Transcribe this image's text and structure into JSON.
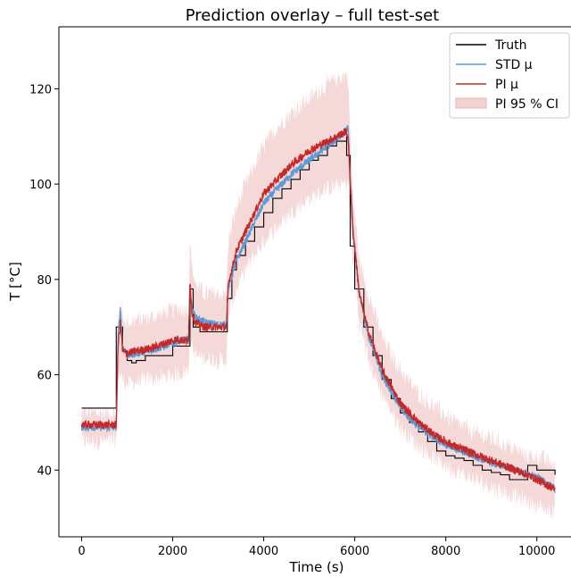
{
  "chart_data": {
    "type": "line",
    "title": "Prediction overlay – full test-set",
    "xlabel": "Time (s)",
    "ylabel": "T [°C]",
    "xlim": [
      -500,
      10750
    ],
    "ylim": [
      26,
      133
    ],
    "xticks": [
      0,
      2000,
      4000,
      6000,
      8000,
      10000
    ],
    "yticks": [
      40,
      60,
      80,
      100,
      120
    ],
    "grid": false,
    "legend_position": "top-right",
    "series": [
      {
        "name": "Truth",
        "kind": "step",
        "color": "#000000",
        "x": [
          0,
          760,
          760,
          900,
          1000,
          1100,
          1200,
          1400,
          1700,
          2000,
          2300,
          2380,
          2450,
          2600,
          2800,
          3000,
          3200,
          3200,
          3300,
          3400,
          3600,
          3800,
          4000,
          4200,
          4400,
          4600,
          4800,
          5000,
          5200,
          5400,
          5600,
          5820,
          5820,
          5900,
          6000,
          6200,
          6400,
          6600,
          6800,
          7000,
          7200,
          7400,
          7600,
          7800,
          8000,
          8200,
          8400,
          8600,
          8800,
          9000,
          9200,
          9400,
          9600,
          9800,
          10000,
          10200,
          10400
        ],
        "y": [
          53,
          53,
          70,
          65,
          63,
          62.5,
          63,
          64,
          64,
          66,
          66,
          78,
          70,
          69,
          69,
          69,
          69,
          76,
          82,
          85,
          88,
          91,
          94,
          97,
          99,
          101,
          103,
          105,
          106,
          108,
          109,
          110,
          106,
          87,
          78,
          70,
          64,
          59,
          55,
          52,
          50,
          48,
          46,
          44,
          43,
          42.5,
          42,
          41,
          40,
          39.5,
          39,
          38,
          38,
          41,
          40,
          40,
          39
        ]
      },
      {
        "name": "STD μ",
        "color": "#5b9bd5",
        "x": [
          0,
          760,
          800,
          850,
          900,
          1000,
          1200,
          1500,
          1800,
          2100,
          2350,
          2380,
          2420,
          2500,
          2700,
          3000,
          3180,
          3220,
          3400,
          3600,
          3800,
          4000,
          4300,
          4600,
          5000,
          5400,
          5800,
          5850,
          5950,
          6100,
          6300,
          6600,
          7000,
          7400,
          7800,
          8200,
          8600,
          9000,
          9400,
          9800,
          10000,
          10400
        ],
        "y": [
          49,
          49,
          68,
          74,
          66,
          64,
          64.5,
          65,
          66,
          67,
          67.5,
          78,
          74,
          72,
          71,
          70.5,
          70.5,
          78,
          84,
          88,
          92,
          96,
          99,
          102,
          105,
          108,
          111,
          112,
          92,
          77,
          68,
          60,
          53,
          49,
          46.5,
          44.5,
          43,
          41.5,
          40.5,
          39,
          38.5,
          36
        ]
      },
      {
        "name": "PI  μ",
        "color": "#c62828",
        "x": [
          0,
          760,
          800,
          850,
          900,
          1000,
          1200,
          1500,
          1800,
          2100,
          2350,
          2380,
          2420,
          2500,
          2700,
          3000,
          3180,
          3220,
          3400,
          3600,
          3800,
          4000,
          4300,
          4600,
          5000,
          5400,
          5800,
          5850,
          5950,
          6100,
          6300,
          6600,
          7000,
          7400,
          7800,
          8200,
          8600,
          9000,
          9400,
          9800,
          10000,
          10400
        ],
        "y": [
          49.5,
          49.5,
          66,
          71,
          65,
          64.5,
          65,
          65.5,
          66.5,
          67.5,
          67,
          80,
          73,
          71,
          70,
          70,
          70,
          79,
          86,
          90,
          94,
          98,
          101,
          104,
          107,
          109,
          111,
          110,
          91,
          77,
          69,
          61,
          54,
          50,
          47,
          45,
          43.5,
          42,
          40.5,
          39,
          38,
          36
        ]
      },
      {
        "name": "PI 95 % CI",
        "kind": "band",
        "color": "#f3d2d2",
        "x": [
          0,
          760,
          800,
          850,
          900,
          1000,
          1200,
          1500,
          1800,
          2100,
          2350,
          2380,
          2420,
          2500,
          2700,
          3000,
          3180,
          3220,
          3400,
          3600,
          3800,
          4000,
          4300,
          4600,
          5000,
          5400,
          5800,
          5850,
          5950,
          6100,
          6300,
          6600,
          7000,
          7400,
          7800,
          8200,
          8600,
          9000,
          9400,
          9800,
          10000,
          10400
        ],
        "lower": [
          46,
          46,
          60,
          60,
          59,
          58,
          58.5,
          59,
          59.5,
          60,
          61,
          70,
          66,
          64,
          63.5,
          63,
          63,
          72,
          78,
          82,
          85,
          88,
          91,
          94,
          97,
          99,
          100,
          101,
          85,
          71,
          63,
          56,
          49,
          45,
          42,
          40,
          38,
          36.5,
          35,
          33.5,
          32.5,
          31
        ],
        "upper": [
          52,
          52,
          71,
          76,
          72,
          71,
          71.5,
          72,
          73,
          74,
          74,
          88,
          83,
          79,
          77,
          77,
          77,
          88,
          95,
          100,
          104,
          108,
          112,
          115,
          118,
          121,
          123,
          123,
          99,
          84,
          77,
          68,
          61,
          56,
          53,
          50,
          48,
          46.5,
          45,
          43,
          43,
          41
        ]
      }
    ]
  }
}
